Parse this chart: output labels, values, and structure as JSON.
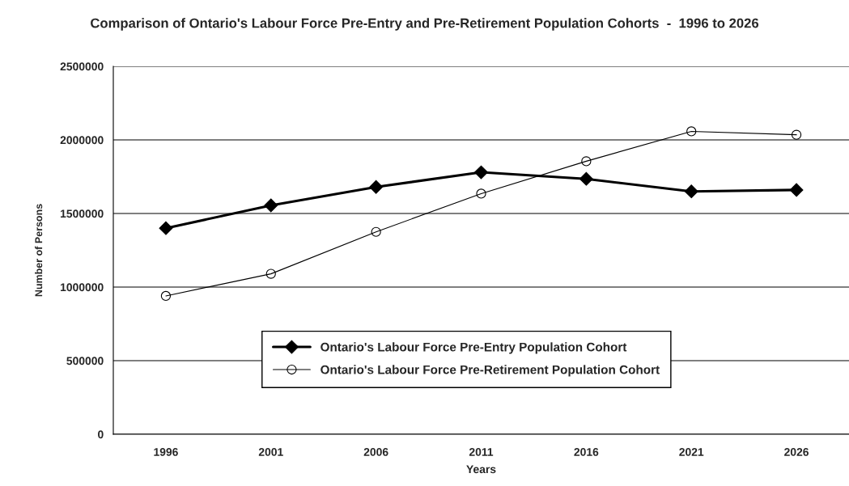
{
  "chart_data": {
    "type": "line",
    "title": "Comparison of Ontario's Labour Force Pre-Entry and Pre-Retirement Population Cohorts  -  1996 to 2026",
    "xlabel": "Years",
    "ylabel": "Number of Persons",
    "categories": [
      "1996",
      "2001",
      "2006",
      "2011",
      "2016",
      "2021",
      "2026"
    ],
    "series": [
      {
        "name": "Ontario's Labour Force Pre-Entry Population Cohort",
        "color": "#000000",
        "marker": "diamond",
        "values": [
          1400000,
          1555000,
          1680000,
          1780000,
          1735000,
          1650000,
          1660000
        ]
      },
      {
        "name": "Ontario's Labour Force Pre-Retirement Population Cohort",
        "color": "#000000",
        "marker": "circle",
        "values": [
          940000,
          1090000,
          1375000,
          1635000,
          1855000,
          2058000,
          2035000
        ]
      }
    ],
    "ylim": [
      0,
      2500000
    ],
    "yticks": [
      0,
      500000,
      1000000,
      1500000,
      2000000,
      2500000
    ],
    "grid": "y",
    "legend": "bottom"
  }
}
